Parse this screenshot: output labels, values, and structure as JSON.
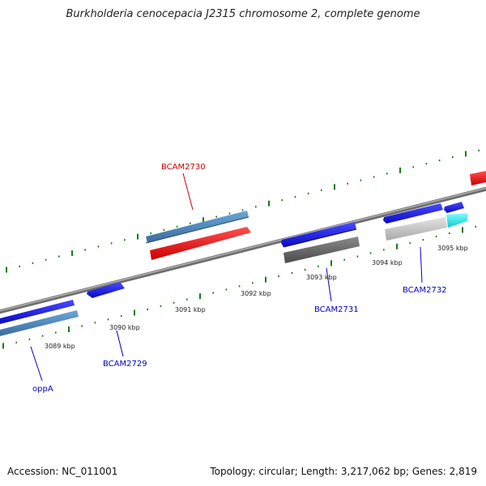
{
  "title": "Burkholderia cenocepacia J2315 chromosome 2, complete genome",
  "footer": {
    "accession": "Accession: NC_011001",
    "summary": "Topology: circular; Length: 3,217,062 bp; Genes: 2,819"
  },
  "colors": {
    "backbone": "#8a8a8a",
    "ticks": "#1a7a1a",
    "gene_blue": "#1414e6",
    "gene_steel": "#4a84b8",
    "gene_red": "#ee1111",
    "gene_gray": "#6a6a6a",
    "gene_lightgray": "#c8c8c8",
    "gene_cyan": "#19e6ee",
    "label_blue": "#0000cc",
    "label_red": "#cc0000"
  },
  "kbp_labels": [
    "3089 kbp",
    "3090 kbp",
    "3091 kbp",
    "3092 kbp",
    "3093 kbp",
    "3094 kbp",
    "3095 kbp"
  ],
  "gene_labels": [
    {
      "text": "oppA",
      "color": "blue"
    },
    {
      "text": "BCAM2729",
      "color": "blue"
    },
    {
      "text": "BCAM2730",
      "color": "red"
    },
    {
      "text": "BCAM2731",
      "color": "blue"
    },
    {
      "text": "BCAM2732",
      "color": "blue"
    }
  ]
}
